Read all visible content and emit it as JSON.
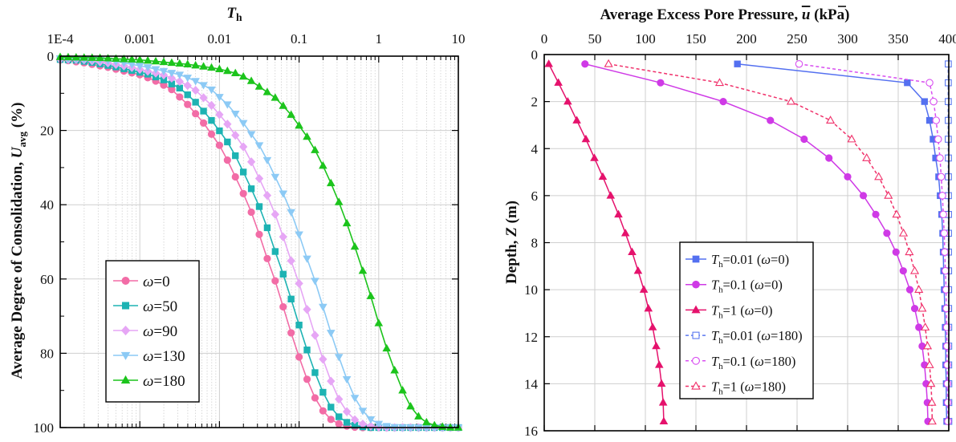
{
  "chart_data": [
    {
      "type": "line",
      "xlabel": "Th",
      "ylabel": "Average Degree of Consolidation, Uavg (%)",
      "x_scale": "log",
      "xlim": [
        0.0001,
        10
      ],
      "ylim": [
        0,
        100
      ],
      "y_inverted": true,
      "x_axis_position": "top",
      "grid": true,
      "legend_position": "center-left",
      "x_ticks": [
        "1E-4",
        "0.001",
        "0.01",
        "0.1",
        "1",
        "10"
      ],
      "x_tick_values": [
        0.0001,
        0.001,
        0.01,
        0.1,
        1,
        10
      ],
      "y_ticks": [
        0,
        20,
        40,
        60,
        80,
        100
      ],
      "x_point_rule": "Th = 10^(-4 + k/10), k = 0..50",
      "series": [
        {
          "name": "ω=0",
          "color": "#f26ca6",
          "marker": "circle",
          "values": [
            1.0,
            1.2,
            1.5,
            1.8,
            2.2,
            2.6,
            3.0,
            3.5,
            4.0,
            4.5,
            5.0,
            5.8,
            6.7,
            7.8,
            9.0,
            11.0,
            13.0,
            15.5,
            18.0,
            21.0,
            24.0,
            28.0,
            32.5,
            37.0,
            42.0,
            48.0,
            54.5,
            60.5,
            67.5,
            74.5,
            81.0,
            87.0,
            92.0,
            95.5,
            97.8,
            99.0,
            99.6,
            99.9,
            100,
            100,
            100,
            100,
            100,
            100,
            100,
            100,
            100,
            100,
            100,
            100,
            100
          ]
        },
        {
          "name": "ω=50",
          "color": "#1db3b3",
          "marker": "square",
          "values": [
            0.9,
            1.0,
            1.1,
            1.4,
            1.7,
            2.1,
            2.5,
            2.9,
            3.4,
            3.85,
            4.35,
            4.85,
            5.6,
            6.4,
            7.5,
            8.6,
            10.4,
            12.4,
            14.8,
            17.3,
            20.1,
            23.1,
            26.8,
            31.2,
            35.7,
            40.5,
            46.2,
            52.6,
            58.7,
            65.4,
            72.4,
            79.1,
            85.2,
            90.5,
            94.5,
            97.1,
            98.6,
            99.4,
            99.8,
            100,
            100,
            100,
            100,
            100,
            100,
            100,
            100,
            100,
            100,
            100,
            100
          ]
        },
        {
          "name": "ω=90",
          "color": "#e6a6f5",
          "marker": "diamond",
          "values": [
            0.8,
            0.85,
            0.9,
            1.0,
            1.23,
            1.53,
            1.84,
            2.24,
            2.64,
            3.05,
            3.55,
            4.05,
            4.55,
            5.08,
            5.9,
            6.8,
            7.9,
            9.2,
            11.2,
            13.25,
            15.75,
            18.3,
            21.3,
            24.4,
            28.45,
            32.95,
            37.5,
            42.6,
            48.65,
            55.1,
            61.2,
            68.2,
            75.15,
            81.6,
            87.5,
            92.35,
            95.7,
            97.9,
            99.06,
            99.6,
            99.9,
            100,
            100,
            100,
            100,
            100,
            100,
            100,
            100,
            100,
            100
          ]
        },
        {
          "name": "ω=130",
          "color": "#8ccaf5",
          "marker": "triangle-down",
          "values": [
            0.6,
            0.7,
            0.75,
            0.8,
            0.9,
            1.0,
            1.2,
            1.5,
            1.8,
            2.2,
            2.6,
            3.0,
            3.5,
            4.0,
            4.5,
            5.0,
            5.8,
            6.7,
            7.8,
            9.0,
            11.0,
            13.0,
            15.5,
            18.0,
            21.0,
            24.0,
            28.0,
            32.5,
            37.0,
            42.0,
            48.0,
            54.5,
            60.5,
            67.5,
            74.5,
            81.0,
            87.0,
            92.0,
            95.5,
            97.8,
            99.0,
            99.6,
            99.9,
            100,
            100,
            100,
            100,
            100,
            100,
            100,
            100
          ]
        },
        {
          "name": "ω=180",
          "color": "#1cc41c",
          "marker": "triangle-up",
          "values": [
            0.25,
            0.3,
            0.35,
            0.4,
            0.45,
            0.5,
            0.6,
            0.7,
            0.8,
            0.9,
            1.0,
            1.2,
            1.4,
            1.6,
            1.8,
            2.0,
            2.2,
            2.5,
            2.8,
            3.1,
            3.5,
            4.0,
            4.6,
            5.5,
            6.7,
            8.2,
            9.7,
            11.2,
            13.4,
            15.8,
            18.7,
            21.7,
            25.3,
            29.5,
            34.2,
            39.3,
            45.0,
            51.3,
            57.8,
            64.6,
            71.9,
            78.7,
            84.6,
            90.0,
            94.3,
            97.0,
            98.6,
            99.4,
            99.8,
            100,
            100
          ]
        }
      ]
    },
    {
      "type": "line",
      "xlabel": "Average Excess Pore Pressure, u (kPa)",
      "ylabel": "Depth, Z (m)",
      "xlim": [
        0,
        400
      ],
      "ylim": [
        0,
        16
      ],
      "y_inverted": true,
      "x_axis_position": "top",
      "grid": true,
      "legend_position": "bottom-center",
      "x_ticks": [
        0,
        50,
        100,
        150,
        200,
        250,
        300,
        350,
        400
      ],
      "y_ticks": [
        0,
        2,
        4,
        6,
        8,
        10,
        12,
        14,
        16
      ],
      "depth": [
        0.4,
        1.2,
        2.0,
        2.8,
        3.6,
        4.4,
        5.2,
        6.0,
        6.8,
        7.6,
        8.4,
        9.2,
        10.0,
        10.8,
        11.6,
        12.4,
        13.2,
        14.0,
        14.8,
        15.6
      ],
      "series": [
        {
          "name": "Th=0.01 (ω=0)",
          "color": "#5470f0",
          "marker": "square",
          "filled": true,
          "dashed": false,
          "values": [
            191,
            359,
            376,
            381,
            384.5,
            387,
            390,
            391.5,
            393,
            394,
            394.5,
            395,
            395.5,
            396,
            396.5,
            397,
            397,
            397.5,
            397.5,
            398
          ]
        },
        {
          "name": "Th=0.1 (ω=0)",
          "color": "#cf3ae6",
          "marker": "circle",
          "filled": true,
          "dashed": false,
          "values": [
            40.3,
            115,
            177,
            223.6,
            257,
            281.5,
            300,
            315.5,
            327.8,
            338.8,
            347.8,
            355,
            361.5,
            366.3,
            370.4,
            373.7,
            376,
            377.6,
            378.8,
            379.4
          ]
        },
        {
          "name": "Th=1 (ω=0)",
          "color": "#e5126c",
          "marker": "triangle-up",
          "filled": true,
          "dashed": false,
          "values": [
            4.5,
            14,
            23.3,
            32.2,
            41.2,
            49.6,
            57.9,
            65.7,
            73.4,
            80.3,
            86.9,
            92.8,
            98.5,
            103,
            107.2,
            110.7,
            113.7,
            116,
            117.6,
            118.2
          ]
        },
        {
          "name": "Th=0.01 (ω=180)",
          "color": "#5a78f0",
          "marker": "square",
          "filled": false,
          "dashed": true,
          "values": [
            399.5,
            399.5,
            399.5,
            399.5,
            399.5,
            399.6,
            399.6,
            399.6,
            399.7,
            399.7,
            399.7,
            399.8,
            399.8,
            399.8,
            399.9,
            399.9,
            399.9,
            400,
            400,
            400
          ]
        },
        {
          "name": "Th=0.1 (ω=180)",
          "color": "#d84ef0",
          "marker": "circle",
          "filled": false,
          "dashed": true,
          "values": [
            252,
            381,
            385,
            387.5,
            389.5,
            391.3,
            392.5,
            393.7,
            394.6,
            395.5,
            396,
            396.7,
            397.3,
            397.6,
            398,
            398.2,
            398.5,
            398.7,
            399,
            399.2
          ]
        },
        {
          "name": "Th=1 (ω=180)",
          "color": "#f0306a",
          "marker": "triangle-up",
          "filled": false,
          "dashed": true,
          "values": [
            63.6,
            173.4,
            244,
            283,
            304,
            318.8,
            330.7,
            340.3,
            348.4,
            355.2,
            361,
            366.3,
            370.4,
            373.7,
            376.7,
            379,
            381,
            382.4,
            383.3,
            383.6
          ]
        }
      ]
    }
  ]
}
